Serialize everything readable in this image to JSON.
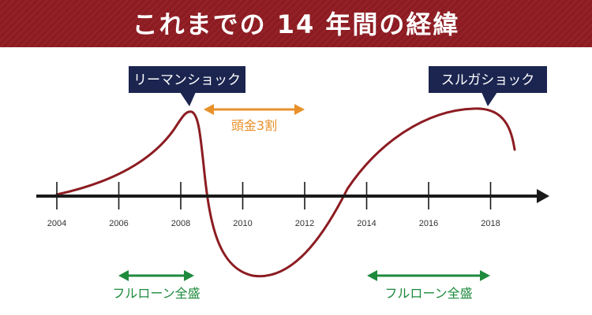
{
  "title": "これまでの 14 年間の経緯",
  "callouts": {
    "lehman": "リーマンショック",
    "suruga": "スルガショック"
  },
  "annotations": {
    "down_payment": "頭金3割",
    "full_loan_1": "フルローン全盛",
    "full_loan_2": "フルローン全盛"
  },
  "timeline": {
    "years": [
      "2004",
      "2006",
      "2008",
      "2010",
      "2012",
      "2014",
      "2016",
      "2018"
    ]
  },
  "colors": {
    "title_bar": "#8c1c22",
    "curve": "#8c1c22",
    "callout_bg": "#1b2550",
    "orange": "#e8902a",
    "green": "#1e8a3c",
    "axis": "#1a1a1a"
  }
}
